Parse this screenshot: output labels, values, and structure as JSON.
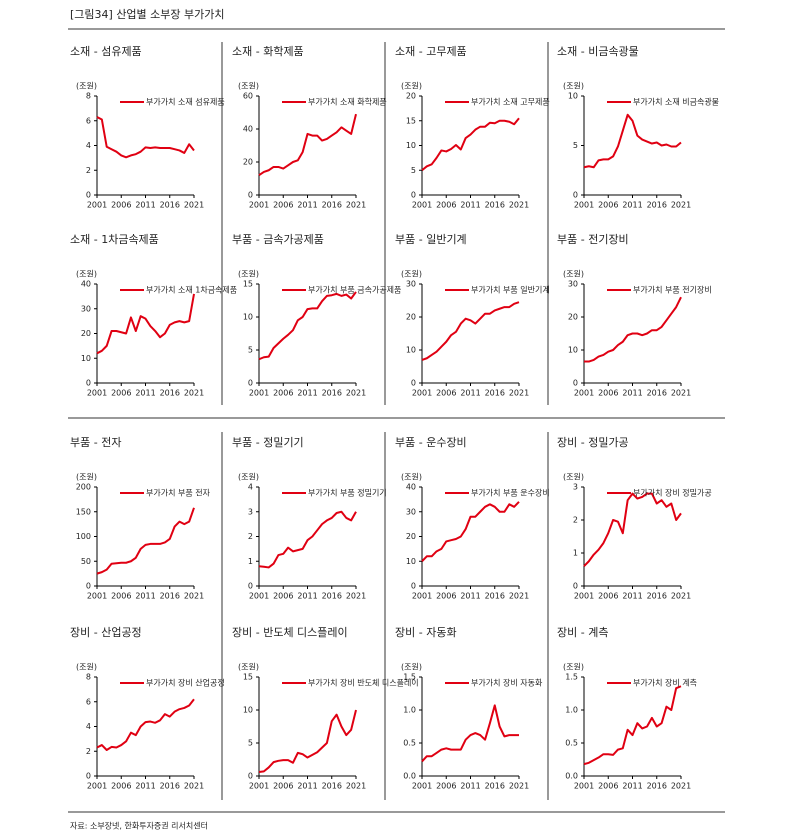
{
  "title": "[그림34] 산업별 소부장 부가가치",
  "source": "자료: 소부장넷, 한화투자증권 리서치센터",
  "chart_data": [
    {
      "type": "line",
      "title": "소재 - 섬유제품",
      "y_unit": "(조원)",
      "x": [
        2001,
        2002,
        2003,
        2004,
        2005,
        2006,
        2007,
        2008,
        2009,
        2010,
        2011,
        2012,
        2013,
        2014,
        2015,
        2016,
        2017,
        2018,
        2019,
        2020,
        2021
      ],
      "xlim": [
        2001,
        2021
      ],
      "xticks": [
        2001,
        2006,
        2011,
        2016,
        2021
      ],
      "ylim": [
        0,
        8
      ],
      "yticks": [
        0,
        2,
        4,
        6,
        8
      ],
      "series": [
        {
          "name": "부가가치 소재 섬유제품",
          "color": "#e00012",
          "values": [
            6.3,
            6.1,
            3.9,
            3.7,
            3.5,
            3.2,
            3.05,
            3.2,
            3.3,
            3.5,
            3.85,
            3.8,
            3.85,
            3.8,
            3.8,
            3.8,
            3.7,
            3.6,
            3.4,
            4.1,
            3.6
          ]
        }
      ]
    },
    {
      "type": "line",
      "title": "소재 - 화학제품",
      "y_unit": "(조원)",
      "x": [
        2001,
        2002,
        2003,
        2004,
        2005,
        2006,
        2007,
        2008,
        2009,
        2010,
        2011,
        2012,
        2013,
        2014,
        2015,
        2016,
        2017,
        2018,
        2019,
        2020,
        2021
      ],
      "xlim": [
        2001,
        2021
      ],
      "xticks": [
        2001,
        2006,
        2011,
        2016,
        2021
      ],
      "ylim": [
        0,
        60
      ],
      "yticks": [
        0,
        20,
        40,
        60
      ],
      "series": [
        {
          "name": "부가가치 소재 화학제품",
          "color": "#e00012",
          "values": [
            12,
            14,
            15,
            17,
            17,
            16,
            18,
            20,
            21,
            26,
            37,
            36,
            36,
            33,
            34,
            36,
            38,
            41,
            39,
            37,
            49
          ]
        }
      ]
    },
    {
      "type": "line",
      "title": "소재 - 고무제품",
      "y_unit": "(조원)",
      "x": [
        2001,
        2002,
        2003,
        2004,
        2005,
        2006,
        2007,
        2008,
        2009,
        2010,
        2011,
        2012,
        2013,
        2014,
        2015,
        2016,
        2017,
        2018,
        2019,
        2020,
        2021
      ],
      "xlim": [
        2001,
        2021
      ],
      "xticks": [
        2001,
        2006,
        2011,
        2016,
        2021
      ],
      "ylim": [
        0,
        20
      ],
      "yticks": [
        0,
        5,
        10,
        15,
        20
      ],
      "series": [
        {
          "name": "부가가치 소재 고무제품",
          "color": "#e00012",
          "values": [
            5,
            5.8,
            6.2,
            7.5,
            9,
            8.8,
            9.3,
            10.1,
            9.2,
            11.5,
            12.2,
            13.2,
            13.8,
            13.8,
            14.6,
            14.5,
            15,
            15,
            14.8,
            14.3,
            15.5
          ]
        }
      ]
    },
    {
      "type": "line",
      "title": "소재 - 비금속광물",
      "y_unit": "(조원)",
      "x": [
        2001,
        2002,
        2003,
        2004,
        2005,
        2006,
        2007,
        2008,
        2009,
        2010,
        2011,
        2012,
        2013,
        2014,
        2015,
        2016,
        2017,
        2018,
        2019,
        2020,
        2021
      ],
      "xlim": [
        2001,
        2021
      ],
      "xticks": [
        2001,
        2006,
        2011,
        2016,
        2021
      ],
      "ylim": [
        0,
        10
      ],
      "yticks": [
        0,
        5,
        10
      ],
      "series": [
        {
          "name": "부가가치 소재 비금속광물",
          "color": "#e00012",
          "values": [
            2.8,
            2.9,
            2.8,
            3.5,
            3.6,
            3.6,
            3.9,
            4.9,
            6.5,
            8.1,
            7.5,
            6,
            5.6,
            5.4,
            5.2,
            5.3,
            5.0,
            5.1,
            4.9,
            4.9,
            5.3
          ]
        }
      ]
    },
    {
      "type": "line",
      "title": "소재 - 1차금속제품",
      "y_unit": "(조원)",
      "x": [
        2001,
        2002,
        2003,
        2004,
        2005,
        2006,
        2007,
        2008,
        2009,
        2010,
        2011,
        2012,
        2013,
        2014,
        2015,
        2016,
        2017,
        2018,
        2019,
        2020,
        2021
      ],
      "xlim": [
        2001,
        2021
      ],
      "xticks": [
        2001,
        2006,
        2011,
        2016,
        2021
      ],
      "ylim": [
        0,
        40
      ],
      "yticks": [
        0,
        10,
        20,
        30,
        40
      ],
      "series": [
        {
          "name": "부가가치 소재 1차금속제품",
          "color": "#e00012",
          "values": [
            12,
            13,
            15,
            21,
            21,
            20.5,
            20,
            26.5,
            21,
            27,
            26,
            23,
            21,
            18.5,
            20,
            23.5,
            24.5,
            25,
            24.5,
            25,
            36
          ]
        }
      ]
    },
    {
      "type": "line",
      "title": "부품 - 금속가공제품",
      "y_unit": "(조원)",
      "x": [
        2001,
        2002,
        2003,
        2004,
        2005,
        2006,
        2007,
        2008,
        2009,
        2010,
        2011,
        2012,
        2013,
        2014,
        2015,
        2016,
        2017,
        2018,
        2019,
        2020,
        2021
      ],
      "xlim": [
        2001,
        2021
      ],
      "xticks": [
        2001,
        2006,
        2011,
        2016,
        2021
      ],
      "ylim": [
        0,
        15
      ],
      "yticks": [
        0,
        5,
        10,
        15
      ],
      "series": [
        {
          "name": "부가가치 부품 금속가공제품",
          "color": "#e00012",
          "values": [
            3.6,
            3.9,
            4,
            5.3,
            6,
            6.7,
            7.3,
            8,
            9.5,
            10,
            11.2,
            11.3,
            11.3,
            12.4,
            13.2,
            13.3,
            13.5,
            13.2,
            13.4,
            12.8,
            13.8
          ]
        }
      ]
    },
    {
      "type": "line",
      "title": "부품 - 일반기계",
      "y_unit": "(조원)",
      "x": [
        2001,
        2002,
        2003,
        2004,
        2005,
        2006,
        2007,
        2008,
        2009,
        2010,
        2011,
        2012,
        2013,
        2014,
        2015,
        2016,
        2017,
        2018,
        2019,
        2020,
        2021
      ],
      "xlim": [
        2001,
        2021
      ],
      "xticks": [
        2001,
        2006,
        2011,
        2016,
        2021
      ],
      "ylim": [
        0,
        30
      ],
      "yticks": [
        0,
        10,
        20,
        30
      ],
      "series": [
        {
          "name": "부가가치 부품 일반기계",
          "color": "#e00012",
          "values": [
            7,
            7.5,
            8.5,
            9.5,
            11,
            12.5,
            14.5,
            15.5,
            18,
            19.5,
            19,
            18,
            19.5,
            21,
            21,
            22,
            22.5,
            23,
            23,
            24,
            24.5
          ]
        }
      ]
    },
    {
      "type": "line",
      "title": "부품 - 전기장비",
      "y_unit": "(조원)",
      "x": [
        2001,
        2002,
        2003,
        2004,
        2005,
        2006,
        2007,
        2008,
        2009,
        2010,
        2011,
        2012,
        2013,
        2014,
        2015,
        2016,
        2017,
        2018,
        2019,
        2020,
        2021
      ],
      "xlim": [
        2001,
        2021
      ],
      "xticks": [
        2001,
        2006,
        2011,
        2016,
        2021
      ],
      "ylim": [
        0,
        30
      ],
      "yticks": [
        0,
        10,
        20,
        30
      ],
      "series": [
        {
          "name": "부가가치 부품 전기장비",
          "color": "#e00012",
          "values": [
            6.5,
            6.5,
            7,
            8,
            8.5,
            9.5,
            10,
            11.5,
            12.5,
            14.5,
            15,
            15,
            14.5,
            15,
            16,
            16,
            17,
            19,
            21,
            23,
            26
          ]
        }
      ]
    },
    {
      "type": "line",
      "title": "부품 - 전자",
      "y_unit": "(조원)",
      "x": [
        2001,
        2002,
        2003,
        2004,
        2005,
        2006,
        2007,
        2008,
        2009,
        2010,
        2011,
        2012,
        2013,
        2014,
        2015,
        2016,
        2017,
        2018,
        2019,
        2020,
        2021
      ],
      "xlim": [
        2001,
        2021
      ],
      "xticks": [
        2001,
        2006,
        2011,
        2016,
        2021
      ],
      "ylim": [
        0,
        200
      ],
      "yticks": [
        0,
        50,
        100,
        150,
        200
      ],
      "series": [
        {
          "name": "부가가치 부품 전자",
          "color": "#e00012",
          "values": [
            25,
            28,
            33,
            45,
            46,
            47,
            47,
            50,
            57,
            75,
            83,
            85,
            85,
            85,
            88,
            95,
            120,
            130,
            125,
            130,
            158
          ]
        }
      ]
    },
    {
      "type": "line",
      "title": "부품 - 정밀기기",
      "y_unit": "(조원)",
      "x": [
        2001,
        2002,
        2003,
        2004,
        2005,
        2006,
        2007,
        2008,
        2009,
        2010,
        2011,
        2012,
        2013,
        2014,
        2015,
        2016,
        2017,
        2018,
        2019,
        2020,
        2021
      ],
      "xlim": [
        2001,
        2021
      ],
      "xticks": [
        2001,
        2006,
        2011,
        2016,
        2021
      ],
      "ylim": [
        0,
        4
      ],
      "yticks": [
        0,
        1,
        2,
        3,
        4
      ],
      "series": [
        {
          "name": "부가가치 부품 정밀기기",
          "color": "#e00012",
          "values": [
            0.8,
            0.78,
            0.75,
            0.9,
            1.25,
            1.3,
            1.55,
            1.4,
            1.45,
            1.5,
            1.85,
            2.0,
            2.25,
            2.5,
            2.65,
            2.75,
            2.95,
            3.0,
            2.75,
            2.65,
            3.0
          ]
        }
      ]
    },
    {
      "type": "line",
      "title": "부품 - 운수장비",
      "y_unit": "(조원)",
      "x": [
        2001,
        2002,
        2003,
        2004,
        2005,
        2006,
        2007,
        2008,
        2009,
        2010,
        2011,
        2012,
        2013,
        2014,
        2015,
        2016,
        2017,
        2018,
        2019,
        2020,
        2021
      ],
      "xlim": [
        2001,
        2021
      ],
      "xticks": [
        2001,
        2006,
        2011,
        2016,
        2021
      ],
      "ylim": [
        0,
        40
      ],
      "yticks": [
        0,
        10,
        20,
        30,
        40
      ],
      "series": [
        {
          "name": "부가가치 부품 운수장비",
          "color": "#e00012",
          "values": [
            10,
            12,
            12,
            14,
            15,
            18,
            18.5,
            19,
            20,
            23,
            28,
            28,
            30,
            32,
            33,
            32,
            30,
            30,
            33,
            32,
            34
          ]
        }
      ]
    },
    {
      "type": "line",
      "title": "장비 - 정밀가공",
      "y_unit": "(조원)",
      "x": [
        2001,
        2002,
        2003,
        2004,
        2005,
        2006,
        2007,
        2008,
        2009,
        2010,
        2011,
        2012,
        2013,
        2014,
        2015,
        2016,
        2017,
        2018,
        2019,
        2020,
        2021
      ],
      "xlim": [
        2001,
        2021
      ],
      "xticks": [
        2001,
        2006,
        2011,
        2016,
        2021
      ],
      "ylim": [
        0,
        3
      ],
      "yticks": [
        0,
        1,
        2,
        3
      ],
      "series": [
        {
          "name": "부가가치 장비 정밀가공",
          "color": "#e00012",
          "values": [
            0.6,
            0.75,
            0.95,
            1.1,
            1.3,
            1.6,
            2.0,
            1.95,
            1.6,
            2.6,
            2.8,
            2.65,
            2.7,
            2.8,
            2.8,
            2.5,
            2.6,
            2.4,
            2.5,
            2.0,
            2.2
          ]
        }
      ]
    },
    {
      "type": "line",
      "title": "장비 - 산업공정",
      "y_unit": "(조원)",
      "x": [
        2001,
        2002,
        2003,
        2004,
        2005,
        2006,
        2007,
        2008,
        2009,
        2010,
        2011,
        2012,
        2013,
        2014,
        2015,
        2016,
        2017,
        2018,
        2019,
        2020,
        2021
      ],
      "xlim": [
        2001,
        2021
      ],
      "xticks": [
        2001,
        2006,
        2011,
        2016,
        2021
      ],
      "ylim": [
        0,
        8
      ],
      "yticks": [
        0,
        2,
        4,
        6,
        8
      ],
      "series": [
        {
          "name": "부가가치 장비 산업공정",
          "color": "#e00012",
          "values": [
            2.3,
            2.5,
            2.1,
            2.35,
            2.3,
            2.5,
            2.8,
            3.5,
            3.3,
            4.0,
            4.35,
            4.4,
            4.3,
            4.5,
            5.0,
            4.8,
            5.2,
            5.4,
            5.5,
            5.7,
            6.2
          ]
        }
      ]
    },
    {
      "type": "line",
      "title": "장비 - 반도체 디스플레이",
      "y_unit": "(조원)",
      "x": [
        2001,
        2002,
        2003,
        2004,
        2005,
        2006,
        2007,
        2008,
        2009,
        2010,
        2011,
        2012,
        2013,
        2014,
        2015,
        2016,
        2017,
        2018,
        2019,
        2020,
        2021
      ],
      "xlim": [
        2001,
        2021
      ],
      "xticks": [
        2001,
        2006,
        2011,
        2016,
        2021
      ],
      "ylim": [
        0,
        15
      ],
      "yticks": [
        0,
        5,
        10,
        15
      ],
      "series": [
        {
          "name": "부가가치 장비 반도체 디스플레이",
          "color": "#e00012",
          "values": [
            0.6,
            0.7,
            1.3,
            2.1,
            2.3,
            2.4,
            2.4,
            2,
            3.5,
            3.3,
            2.8,
            3.2,
            3.6,
            4.3,
            5,
            8.3,
            9.3,
            7.5,
            6.2,
            7,
            10
          ]
        }
      ]
    },
    {
      "type": "line",
      "title": "장비 - 자동화",
      "y_unit": "(조원)",
      "x": [
        2001,
        2002,
        2003,
        2004,
        2005,
        2006,
        2007,
        2008,
        2009,
        2010,
        2011,
        2012,
        2013,
        2014,
        2015,
        2016,
        2017,
        2018,
        2019,
        2020,
        2021
      ],
      "xlim": [
        2001,
        2021
      ],
      "xticks": [
        2001,
        2006,
        2011,
        2016,
        2021
      ],
      "ylim": [
        0,
        1.5
      ],
      "yticks": [
        {
          "value": 0,
          "label": "0.0"
        },
        0.5,
        {
          "value": 1,
          "label": "1.0"
        },
        1.5
      ],
      "series": [
        {
          "name": "부가가치 장비 자동화",
          "color": "#e00012",
          "values": [
            0.22,
            0.3,
            0.3,
            0.35,
            0.4,
            0.42,
            0.4,
            0.4,
            0.4,
            0.55,
            0.62,
            0.65,
            0.62,
            0.55,
            0.8,
            1.07,
            0.75,
            0.6,
            0.62,
            0.62,
            0.62
          ]
        }
      ]
    },
    {
      "type": "line",
      "title": "장비 - 계측",
      "y_unit": "(조원)",
      "x": [
        2001,
        2002,
        2003,
        2004,
        2005,
        2006,
        2007,
        2008,
        2009,
        2010,
        2011,
        2012,
        2013,
        2014,
        2015,
        2016,
        2017,
        2018,
        2019,
        2020,
        2021
      ],
      "xlim": [
        2001,
        2021
      ],
      "xticks": [
        2001,
        2006,
        2011,
        2016,
        2021
      ],
      "ylim": [
        0,
        1.5
      ],
      "yticks": [
        {
          "value": 0,
          "label": "0.0"
        },
        0.5,
        {
          "value": 1,
          "label": "1.0"
        },
        1.5
      ],
      "series": [
        {
          "name": "부가가치 장비 계측",
          "color": "#e00012",
          "values": [
            0.18,
            0.2,
            0.24,
            0.28,
            0.33,
            0.33,
            0.32,
            0.4,
            0.42,
            0.7,
            0.62,
            0.8,
            0.72,
            0.75,
            0.88,
            0.75,
            0.8,
            1.05,
            1.0,
            1.33,
            1.36
          ]
        }
      ]
    }
  ]
}
